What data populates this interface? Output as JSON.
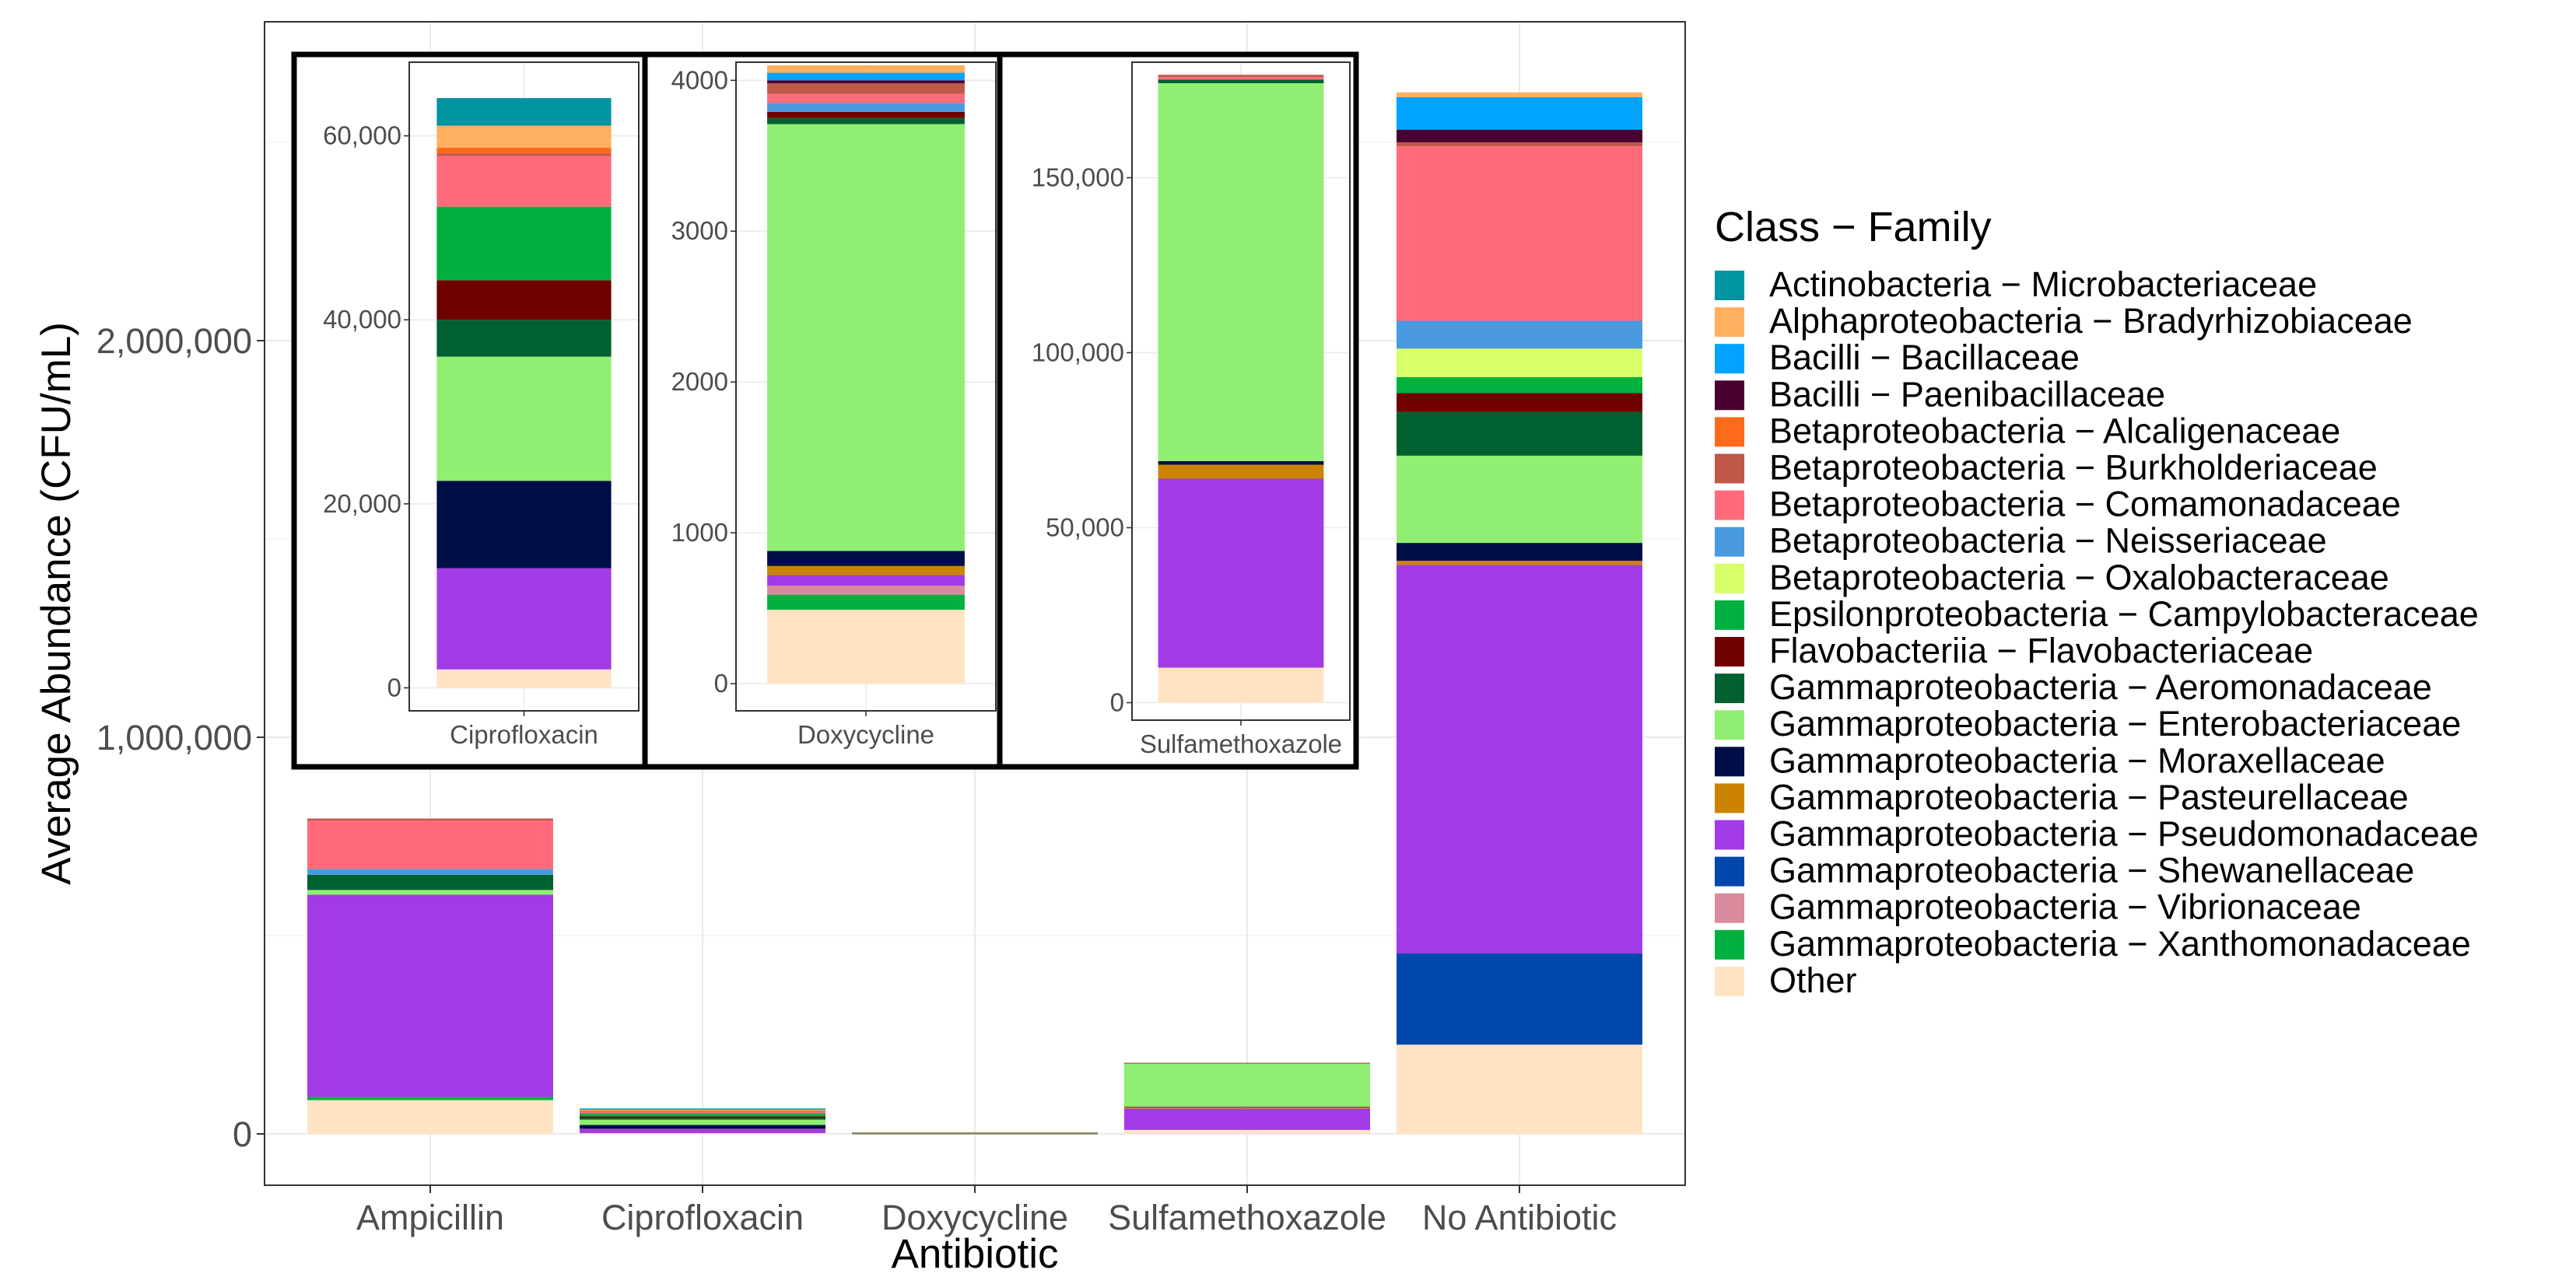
{
  "chart_data": {
    "type": "stacked-bar",
    "xlabel": "Antibiotic",
    "ylabel": "Average Abundance (CFU/mL)",
    "ylim": [
      0,
      2700000
    ],
    "yticks": [
      0,
      1000000,
      2000000
    ],
    "ytick_labels": [
      "0",
      "1,000,000",
      "2,000,000"
    ],
    "legend_title": "Class − Family",
    "legend_position": "right",
    "categories": [
      "Ampicillin",
      "Ciprofloxacin",
      "Doxycycline",
      "Sulfamethoxazole",
      "No Antibiotic"
    ],
    "series": [
      {
        "name": "Other",
        "color": "#FFE4C4",
        "values": [
          85000,
          2000,
          490,
          10000,
          225000
        ]
      },
      {
        "name": "Gammaproteobacteria − Xanthomonadaceae",
        "color": "#00B140",
        "values": [
          8000,
          0,
          100,
          0,
          0
        ]
      },
      {
        "name": "Gammaproteobacteria − Vibrionaceae",
        "color": "#D98A9C",
        "values": [
          0,
          0,
          60,
          0,
          0
        ]
      },
      {
        "name": "Gammaproteobacteria − Shewanellaceae",
        "color": "#0047AB",
        "values": [
          0,
          0,
          0,
          0,
          230000
        ]
      },
      {
        "name": "Gammaproteobacteria − Pseudomonadaceae",
        "color": "#A23BE6",
        "values": [
          510000,
          11000,
          70,
          54000,
          980000
        ]
      },
      {
        "name": "Gammaproteobacteria − Pasteurellaceae",
        "color": "#CC8400",
        "values": [
          0,
          0,
          60,
          4000,
          10000
        ]
      },
      {
        "name": "Gammaproteobacteria − Moraxellaceae",
        "color": "#000E47",
        "values": [
          0,
          9500,
          100,
          1000,
          45000
        ]
      },
      {
        "name": "Gammaproteobacteria − Enterobacteriaceae",
        "color": "#90EE72",
        "values": [
          12000,
          13500,
          2830,
          108000,
          220000
        ]
      },
      {
        "name": "Gammaproteobacteria − Aeromonadaceae",
        "color": "#006030",
        "values": [
          38000,
          4000,
          40,
          1000,
          110000
        ]
      },
      {
        "name": "Flavobacteriia − Flavobacteriaceae",
        "color": "#6E0000",
        "values": [
          0,
          4300,
          40,
          0,
          48000
        ]
      },
      {
        "name": "Epsilonproteobacteria − Campylobacteraceae",
        "color": "#00B140",
        "values": [
          0,
          8000,
          0,
          0,
          40000
        ]
      },
      {
        "name": "Betaproteobacteria − Oxalobacteraceae",
        "color": "#D6FF6A",
        "values": [
          0,
          0,
          0,
          0,
          72000
        ]
      },
      {
        "name": "Betaproteobacteria − Neisseriaceae",
        "color": "#4A9AE0",
        "values": [
          15000,
          0,
          60,
          0,
          70000
        ]
      },
      {
        "name": "Betaproteobacteria − Comamonadaceae",
        "color": "#FF6B7A",
        "values": [
          122000,
          5500,
          60,
          800,
          440000
        ]
      },
      {
        "name": "Betaproteobacteria − Burkholderiaceae",
        "color": "#C0584A",
        "values": [
          5000,
          300,
          70,
          600,
          10000
        ]
      },
      {
        "name": "Betaproteobacteria − Alcaligenaceae",
        "color": "#FF6A1A",
        "values": [
          0,
          600,
          0,
          0,
          0
        ]
      },
      {
        "name": "Bacilli − Paenibacillaceae",
        "color": "#4A0030",
        "values": [
          0,
          0,
          20,
          0,
          32000
        ]
      },
      {
        "name": "Bacilli − Bacillaceae",
        "color": "#00A3FF",
        "values": [
          0,
          0,
          50,
          0,
          82000
        ]
      },
      {
        "name": "Alphaproteobacteria − Bradyrhizobiaceae",
        "color": "#FFB060",
        "values": [
          0,
          2400,
          50,
          0,
          12000
        ]
      },
      {
        "name": "Actinobacteria − Microbacteriaceae",
        "color": "#0093A0",
        "values": [
          0,
          3000,
          0,
          0,
          0
        ]
      }
    ],
    "legend_order": [
      "Actinobacteria − Microbacteriaceae",
      "Alphaproteobacteria − Bradyrhizobiaceae",
      "Bacilli − Bacillaceae",
      "Bacilli − Paenibacillaceae",
      "Betaproteobacteria − Alcaligenaceae",
      "Betaproteobacteria − Burkholderiaceae",
      "Betaproteobacteria − Comamonadaceae",
      "Betaproteobacteria − Neisseriaceae",
      "Betaproteobacteria − Oxalobacteraceae",
      "Epsilonproteobacteria − Campylobacteraceae",
      "Flavobacteriia − Flavobacteriaceae",
      "Gammaproteobacteria − Aeromonadaceae",
      "Gammaproteobacteria − Enterobacteriaceae",
      "Gammaproteobacteria − Moraxellaceae",
      "Gammaproteobacteria − Pasteurellaceae",
      "Gammaproteobacteria − Pseudomonadaceae",
      "Gammaproteobacteria − Shewanellaceae",
      "Gammaproteobacteria − Vibrionaceae",
      "Gammaproteobacteria − Xanthomonadaceae",
      "Other"
    ],
    "insets": [
      {
        "category": "Ciprofloxacin",
        "label": "Ciprofloxacin",
        "ylim": [
          -2500,
          68000
        ],
        "yticks": [
          0,
          20000,
          40000,
          60000
        ],
        "ytick_labels": [
          "0",
          "20,000",
          "40,000",
          "60,000"
        ]
      },
      {
        "category": "Doxycycline",
        "label": "Doxycycline",
        "ylim": [
          -180,
          4120
        ],
        "yticks": [
          0,
          1000,
          2000,
          3000,
          4000
        ],
        "ytick_labels": [
          "0",
          "1000",
          "2000",
          "3000",
          "4000"
        ]
      },
      {
        "category": "Sulfamethoxazole",
        "label": "Sulfamethoxazole",
        "ylim": [
          -5000,
          183000
        ],
        "yticks": [
          0,
          50000,
          100000,
          150000
        ],
        "ytick_labels": [
          "0",
          "50,000",
          "100,000",
          "150,000"
        ]
      }
    ]
  }
}
